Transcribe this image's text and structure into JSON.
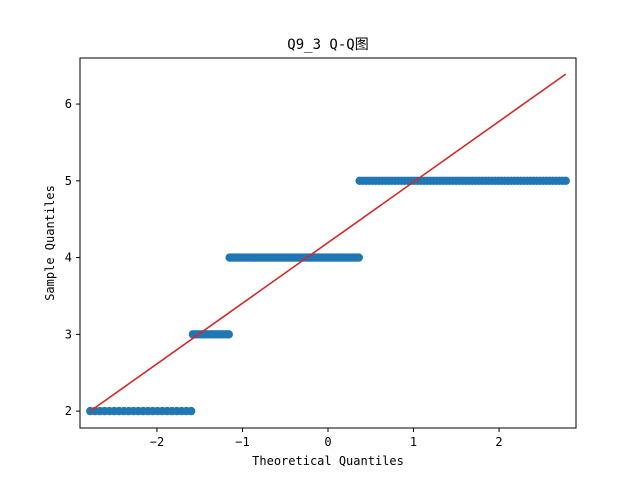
{
  "chart_data": {
    "type": "scatter",
    "title": "Q9_3 Q-Q图",
    "xlabel": "Theoretical Quantiles",
    "ylabel": "Sample Quantiles",
    "xlim": [
      -2.9,
      2.9
    ],
    "ylim": [
      1.78,
      6.6
    ],
    "xticks": [
      -2,
      -1,
      0,
      1,
      2
    ],
    "yticks": [
      2,
      3,
      4,
      5,
      6
    ],
    "grid": false,
    "point_color": "#1f77b4",
    "line_color": "#d62728",
    "reference_line": {
      "x": [
        -2.78,
        2.78
      ],
      "y": [
        2.0,
        6.39
      ]
    },
    "points": [
      {
        "y": 2,
        "x_from": -2.78,
        "x_to": -1.6,
        "count": 22
      },
      {
        "y": 3,
        "x_from": -1.58,
        "x_to": -1.16,
        "count": 14
      },
      {
        "y": 4,
        "x_from": -1.15,
        "x_to": 0.36,
        "count": 90
      },
      {
        "y": 5,
        "x_from": 0.37,
        "x_to": 2.78,
        "count": 65
      }
    ]
  }
}
